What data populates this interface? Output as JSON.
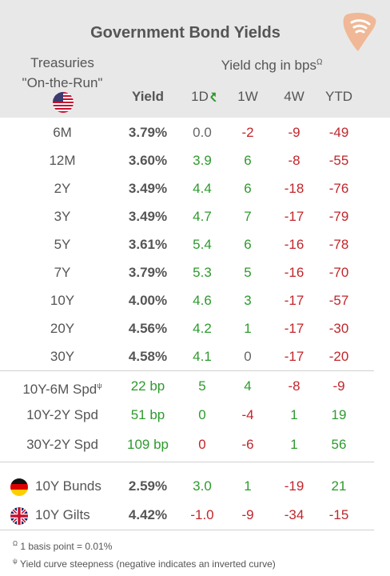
{
  "title": "Government Bond Yields",
  "treasuries": {
    "line1": "Treasuries",
    "line2": "\"On-the-Run\""
  },
  "chg_header": {
    "text": "Yield chg in bps",
    "mark": "Ω"
  },
  "columns": {
    "yield": "Yield",
    "d1": "1D",
    "w1": "1W",
    "w4": "4W",
    "ytd": "YTD"
  },
  "rows": [
    {
      "label": "6M",
      "yield": "3.79%",
      "d1": "0.0",
      "w1": "-2",
      "w4": "-9",
      "ytd": "-49"
    },
    {
      "label": "12M",
      "yield": "3.60%",
      "d1": "3.9",
      "w1": "6",
      "w4": "-8",
      "ytd": "-55"
    },
    {
      "label": "2Y",
      "yield": "3.49%",
      "d1": "4.4",
      "w1": "6",
      "w4": "-18",
      "ytd": "-76"
    },
    {
      "label": "3Y",
      "yield": "3.49%",
      "d1": "4.7",
      "w1": "7",
      "w4": "-17",
      "ytd": "-79"
    },
    {
      "label": "5Y",
      "yield": "3.61%",
      "d1": "5.4",
      "w1": "6",
      "w4": "-16",
      "ytd": "-78"
    },
    {
      "label": "7Y",
      "yield": "3.79%",
      "d1": "5.3",
      "w1": "5",
      "w4": "-16",
      "ytd": "-70"
    },
    {
      "label": "10Y",
      "yield": "4.00%",
      "d1": "4.6",
      "w1": "3",
      "w4": "-17",
      "ytd": "-57"
    },
    {
      "label": "20Y",
      "yield": "4.56%",
      "d1": "4.2",
      "w1": "1",
      "w4": "-17",
      "ytd": "-30"
    },
    {
      "label": "30Y",
      "yield": "4.58%",
      "d1": "4.1",
      "w1": "0",
      "w4": "-17",
      "ytd": "-20"
    }
  ],
  "spreads": [
    {
      "label": "10Y-6M Spd",
      "mark": "ψ",
      "value": "22 bp",
      "d1": "5",
      "w1": "4",
      "w4": "-8",
      "ytd": "-9"
    },
    {
      "label": "10Y-2Y Spd",
      "mark": "",
      "value": "51 bp",
      "d1": "0",
      "w1": "-4",
      "w4": "1",
      "ytd": "19"
    },
    {
      "label": "30Y-2Y Spd",
      "mark": "",
      "value": "109 bp",
      "d1": "0",
      "w1": "-6",
      "w4": "1",
      "ytd": "56"
    }
  ],
  "international": [
    {
      "label": "10Y Bunds",
      "flag": "germany-flag-icon",
      "yield": "2.59%",
      "d1": "3.0",
      "w1": "1",
      "w4": "-19",
      "ytd": "21"
    },
    {
      "label": "10Y Gilts",
      "flag": "uk-flag-icon",
      "yield": "4.42%",
      "d1": "-1.0",
      "w1": "-9",
      "w4": "-34",
      "ytd": "-15"
    }
  ],
  "footnotes": {
    "basis_mark": "Ω",
    "basis_text": "1 basis point = 0.01%",
    "curve_mark": "ψ",
    "curve_text": "Yield curve steepness (negative indicates an inverted curve)"
  },
  "colors": {
    "positive": "#2e9a2e",
    "negative": "#c0262b",
    "header_bg": "#e8e8e8",
    "logo": "#f0b896"
  }
}
